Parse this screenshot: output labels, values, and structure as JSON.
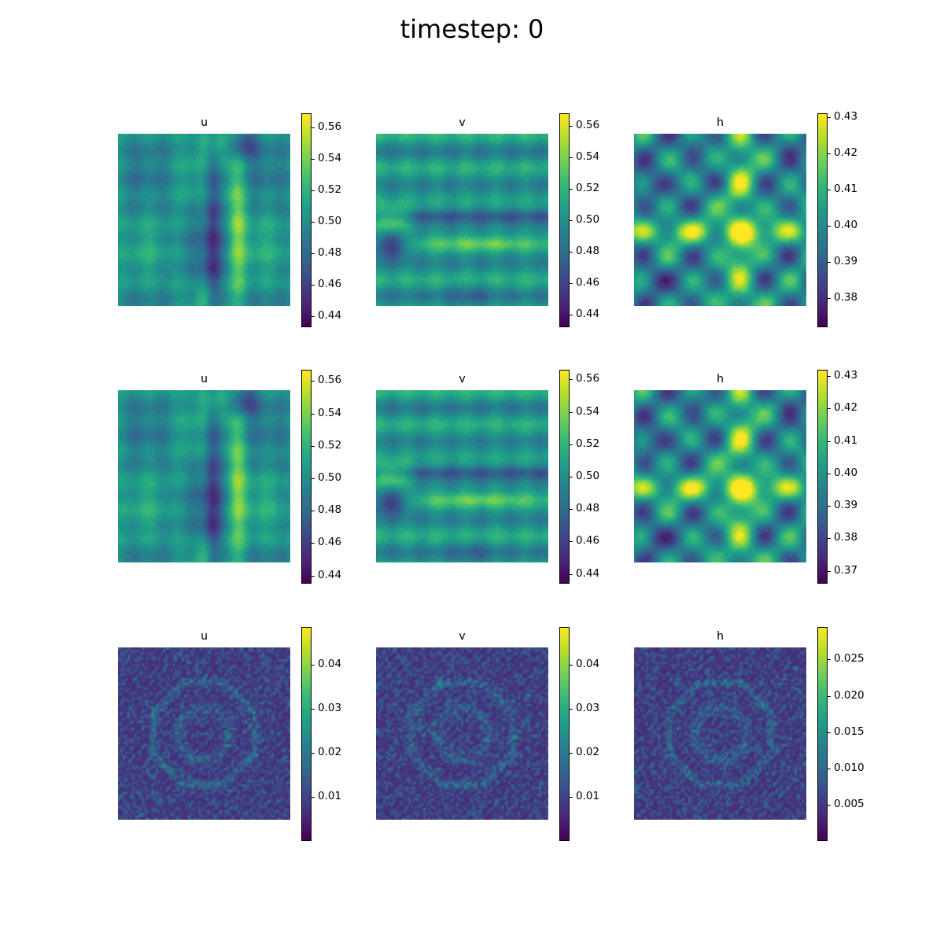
{
  "figure": {
    "title": "timestep: 0",
    "colormap": "viridis",
    "viridis_stops": [
      "#440154",
      "#482878",
      "#3e4989",
      "#31688e",
      "#26828e",
      "#1f9e89",
      "#35b779",
      "#6ece58",
      "#b5de2b",
      "#fde725"
    ]
  },
  "chart_data": [
    {
      "type": "heatmap",
      "row": 0,
      "col": 0,
      "title": "u",
      "pattern": "u",
      "clim": [
        0.433,
        0.569
      ],
      "colorbar_ticks": [
        0.44,
        0.46,
        0.48,
        0.5,
        0.52,
        0.54,
        0.56
      ],
      "colorbar_labels": [
        "0.44",
        "0.46",
        "0.48",
        "0.50",
        "0.52",
        "0.54",
        "0.56"
      ]
    },
    {
      "type": "heatmap",
      "row": 0,
      "col": 1,
      "title": "v",
      "pattern": "v",
      "clim": [
        0.432,
        0.568
      ],
      "colorbar_ticks": [
        0.44,
        0.46,
        0.48,
        0.5,
        0.52,
        0.54,
        0.56
      ],
      "colorbar_labels": [
        "0.44",
        "0.46",
        "0.48",
        "0.50",
        "0.52",
        "0.54",
        "0.56"
      ]
    },
    {
      "type": "heatmap",
      "row": 0,
      "col": 2,
      "title": "h",
      "pattern": "h",
      "clim": [
        0.372,
        0.431
      ],
      "colorbar_ticks": [
        0.38,
        0.39,
        0.4,
        0.41,
        0.42,
        0.43
      ],
      "colorbar_labels": [
        "0.38",
        "0.39",
        "0.40",
        "0.41",
        "0.42",
        "0.43"
      ]
    },
    {
      "type": "heatmap",
      "row": 1,
      "col": 0,
      "title": "u",
      "pattern": "u",
      "clim": [
        0.435,
        0.567
      ],
      "colorbar_ticks": [
        0.44,
        0.46,
        0.48,
        0.5,
        0.52,
        0.54,
        0.56
      ],
      "colorbar_labels": [
        "0.44",
        "0.46",
        "0.48",
        "0.50",
        "0.52",
        "0.54",
        "0.56"
      ]
    },
    {
      "type": "heatmap",
      "row": 1,
      "col": 1,
      "title": "v",
      "pattern": "v",
      "clim": [
        0.434,
        0.566
      ],
      "colorbar_ticks": [
        0.44,
        0.46,
        0.48,
        0.5,
        0.52,
        0.54,
        0.56
      ],
      "colorbar_labels": [
        "0.44",
        "0.46",
        "0.48",
        "0.50",
        "0.52",
        "0.54",
        "0.56"
      ]
    },
    {
      "type": "heatmap",
      "row": 1,
      "col": 2,
      "title": "h",
      "pattern": "h",
      "clim": [
        0.366,
        0.432
      ],
      "colorbar_ticks": [
        0.37,
        0.38,
        0.39,
        0.4,
        0.41,
        0.42,
        0.43
      ],
      "colorbar_labels": [
        "0.37",
        "0.38",
        "0.39",
        "0.40",
        "0.41",
        "0.42",
        "0.43"
      ]
    },
    {
      "type": "heatmap",
      "row": 2,
      "col": 0,
      "title": "u",
      "pattern": "err",
      "clim": [
        0.0,
        0.0485
      ],
      "colorbar_ticks": [
        0.01,
        0.02,
        0.03,
        0.04
      ],
      "colorbar_labels": [
        "0.01",
        "0.02",
        "0.03",
        "0.04"
      ]
    },
    {
      "type": "heatmap",
      "row": 2,
      "col": 1,
      "title": "v",
      "pattern": "err",
      "clim": [
        0.0,
        0.0485
      ],
      "colorbar_ticks": [
        0.01,
        0.02,
        0.03,
        0.04
      ],
      "colorbar_labels": [
        "0.01",
        "0.02",
        "0.03",
        "0.04"
      ]
    },
    {
      "type": "heatmap",
      "row": 2,
      "col": 2,
      "title": "h",
      "pattern": "err",
      "clim": [
        0.0,
        0.0295
      ],
      "colorbar_ticks": [
        0.005,
        0.01,
        0.015,
        0.02,
        0.025
      ],
      "colorbar_labels": [
        "0.005",
        "0.010",
        "0.015",
        "0.020",
        "0.025"
      ]
    }
  ]
}
